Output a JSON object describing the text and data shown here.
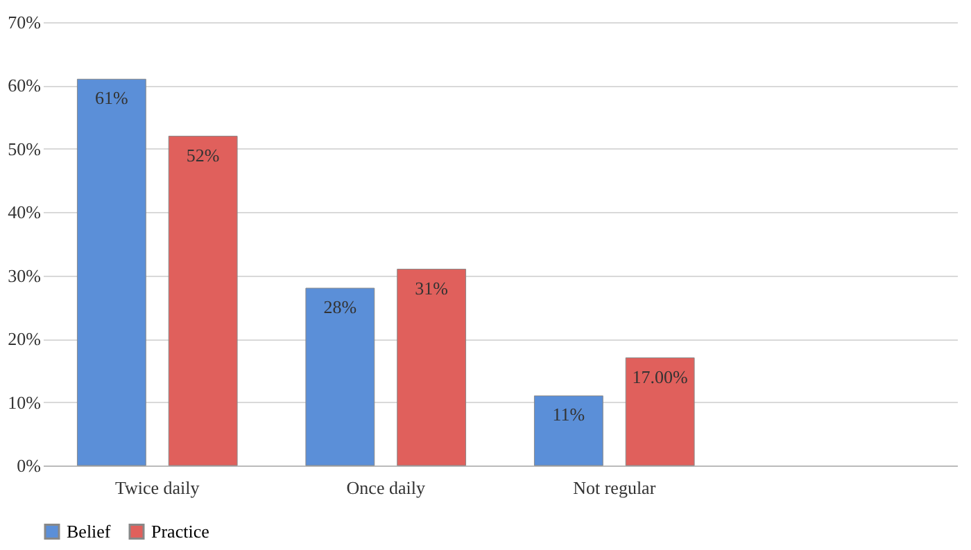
{
  "chart_data": {
    "type": "bar",
    "categories": [
      "Twice daily",
      "Once daily",
      "Not regular",
      null
    ],
    "series": [
      {
        "name": "Belief",
        "color": "#5b8fd8",
        "values": [
          61,
          28,
          11,
          null
        ],
        "value_labels": [
          "61%",
          "28%",
          "11%",
          null
        ]
      },
      {
        "name": "Practice",
        "color": "#e0605c",
        "values": [
          52,
          31,
          17,
          null
        ],
        "value_labels": [
          "52%",
          "31%",
          "17.00%",
          null
        ]
      }
    ],
    "ylim": [
      0,
      70
    ],
    "yticks": [
      {
        "value": 0,
        "label": "0%"
      },
      {
        "value": 10,
        "label": "10%"
      },
      {
        "value": 20,
        "label": "20%"
      },
      {
        "value": 30,
        "label": "30%"
      },
      {
        "value": 40,
        "label": "40%"
      },
      {
        "value": 50,
        "label": "50%"
      },
      {
        "value": 60,
        "label": "60%"
      },
      {
        "value": 70,
        "label": "70%"
      }
    ],
    "grid": "y",
    "legend": "bottom"
  }
}
